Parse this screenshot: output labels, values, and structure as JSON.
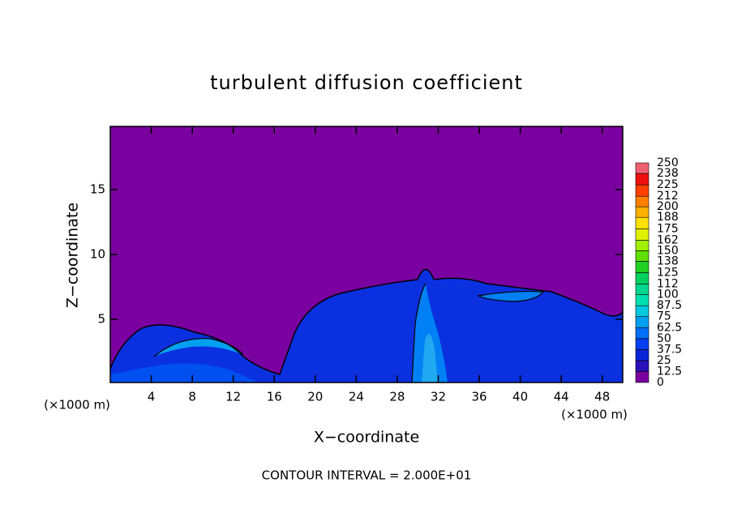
{
  "chart_data": {
    "type": "contour",
    "title": "turbulent diffusion coefficient",
    "x_label": "X−coordinate",
    "y_label": "Z−coordinate",
    "x_unit": "(×1000 m)",
    "y_unit": "(×1000 m)",
    "footer": "CONTOUR INTERVAL = 2.000E+01",
    "xlim": [
      0,
      50
    ],
    "xticks": [
      4,
      8,
      12,
      16,
      20,
      24,
      28,
      32,
      36,
      40,
      44,
      48
    ],
    "ylim": [
      0.125,
      19.875
    ],
    "yticks": [
      5,
      10,
      15
    ],
    "colorbar": {
      "levels": [
        0,
        12.5,
        25,
        37.5,
        50,
        62.5,
        75,
        87.5,
        100,
        112,
        125,
        138,
        150,
        162,
        175,
        188,
        200,
        212,
        225,
        238,
        250
      ],
      "colors": [
        "#7a00a0",
        "#2a10b8",
        "#0a24d8",
        "#0040f0",
        "#0070f8",
        "#00a0f0",
        "#00c8e0",
        "#00e0b0",
        "#00d890",
        "#00d060",
        "#20d020",
        "#60e000",
        "#a0f000",
        "#e0f000",
        "#ffe000",
        "#ffb000",
        "#ff8000",
        "#ff4000",
        "#f01010",
        "#f06070"
      ]
    }
  }
}
